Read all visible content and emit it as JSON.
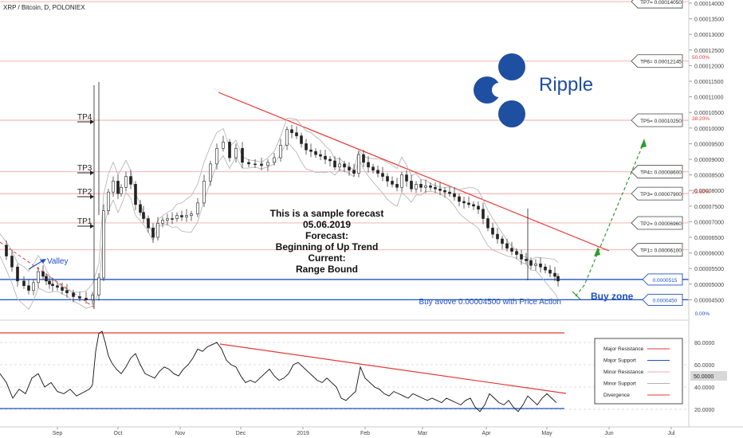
{
  "header": {
    "symbol_title": "XRP / Bitcoin, D, POLONIEX"
  },
  "colors": {
    "resistance": "#e53935",
    "support": "#1e4fc2",
    "minor_resistance": "#f0a8a8",
    "band": "#b0b0b0",
    "up_arrow": "#2e9b2e",
    "candle": "#222222",
    "ripple_logo": "#1f4fa0",
    "fib": "#e53935"
  },
  "logo": {
    "icon_name": "ripple-logo-icon",
    "brand_text": "Ripple"
  },
  "annotations": {
    "forecast_lines": [
      "This is a sample forecast",
      "05.06.2019",
      "Forecast:",
      "Beginning of Up Trend",
      "Current:",
      "Range Bound"
    ],
    "valley_label": "Valley",
    "buy_text": "Buy avove 0.00004500 with Price Action",
    "buy_zone_label": "Buy zone",
    "tp_left": [
      "TP4",
      "TP3",
      "TP2",
      "TP1"
    ],
    "tp_right": [
      "TP7= 0.00014050",
      "TP6= 0.00012145",
      "TP5= 0.00010250",
      "TP4= 0.00008600",
      "TP3= 0.00007900",
      "TP2= 0.00006960",
      "TP1= 0.00006100"
    ],
    "zone_labels": [
      "0.0000515",
      "0.0000450"
    ],
    "fib_labels": [
      "50.00%",
      "38.20%",
      "23.60%",
      "0.00%"
    ]
  },
  "legend": {
    "items": [
      {
        "label": "Major Resistance",
        "color": "#e53935"
      },
      {
        "label": "Major Support",
        "color": "#1e4fc2"
      },
      {
        "label": "Minor Resistance",
        "color": "#f0a8a8"
      },
      {
        "label": "Minor Support",
        "color": "#b0b0b0"
      },
      {
        "label": "Divergence",
        "color": "#e53935"
      }
    ]
  },
  "chart_data": [
    {
      "type": "line",
      "title": "XRP / Bitcoin, D, POLONIEX",
      "ylim": [
        4e-05,
        0.00014
      ],
      "y_ticks": [
        "0.00014000",
        "0.00013500",
        "0.00013000",
        "0.00012500",
        "0.00012000",
        "0.00011500",
        "0.00011000",
        "0.00010500",
        "0.00010000",
        "0.00009500",
        "0.00009000",
        "0.00008500",
        "0.00008000",
        "0.00007500",
        "0.00007000",
        "0.00006500",
        "0.00006000",
        "0.00005500",
        "0.00005000",
        "0.00004500"
      ],
      "x_ticks": [
        "Sep",
        "Oct",
        "Nov",
        "Dec",
        "2019",
        "Feb",
        "Mar",
        "Apr",
        "May",
        "Jun",
        "Jul"
      ],
      "target_levels": [
        0.0001405,
        0.00012145,
        0.0001025,
        8.6e-05,
        7.9e-05,
        6.96e-05,
        6.1e-05
      ],
      "buy_zone": [
        4.5e-05,
        5.15e-05
      ],
      "series": [
        {
          "name": "",
          "x": [
            0,
            8,
            15,
            22,
            30,
            36,
            42,
            48,
            54,
            58,
            62,
            66,
            72,
            78,
            84,
            92,
            100,
            108,
            116,
            124,
            130,
            136,
            142,
            148,
            152,
            158,
            164,
            170,
            176,
            180,
            186,
            192,
            198,
            204,
            210,
            216,
            222,
            228,
            234,
            240,
            248,
            256,
            264,
            272,
            280,
            288,
            296,
            304,
            312,
            320,
            328,
            336,
            344,
            352,
            360,
            366,
            372,
            378,
            384,
            390,
            396,
            402,
            408,
            414,
            420,
            426,
            432,
            438,
            444,
            450,
            456,
            462,
            468,
            474,
            480,
            486,
            492,
            498,
            504,
            510,
            516,
            522,
            528,
            534,
            540,
            546,
            552,
            558,
            564,
            570,
            576,
            582,
            588,
            594,
            600,
            606,
            612,
            618,
            624,
            630,
            636,
            642,
            648,
            654,
            660,
            666,
            672,
            678,
            684,
            690,
            696,
            700
          ],
          "y": [
            6.25e-05,
            5.9e-05,
            5.55e-05,
            5.1e-05,
            4.95e-05,
            4.8e-05,
            5.05e-05,
            5.4e-05,
            5.25e-05,
            5.1e-05,
            5e-05,
            4.95e-05,
            4.9e-05,
            4.8e-05,
            4.72e-05,
            4.6e-05,
            4.55e-05,
            4.5e-05,
            4.65e-05,
            5.2e-05,
            7.35e-05,
            7.95e-05,
            8.3e-05,
            7.9e-05,
            8.1e-05,
            8.45e-05,
            8.2e-05,
            7.55e-05,
            7.3e-05,
            7.1e-05,
            6.8e-05,
            6.5e-05,
            6.95e-05,
            7.05e-05,
            7.1e-05,
            7.1e-05,
            7.2e-05,
            7.15e-05,
            7.2e-05,
            7.25e-05,
            7.6e-05,
            8.3e-05,
            8.85e-05,
            9.35e-05,
            9.55e-05,
            9.05e-05,
            9.35e-05,
            8.9e-05,
            8.85e-05,
            8.85e-05,
            8.8e-05,
            8.9e-05,
            9.05e-05,
            9.45e-05,
            9.95e-05,
            9.85e-05,
            9.75e-05,
            9.5e-05,
            9.3e-05,
            9.25e-05,
            9.15e-05,
            9.1e-05,
            9e-05,
            8.95e-05,
            8.75e-05,
            8.85e-05,
            8.75e-05,
            8.65e-05,
            8.55e-05,
            9.15e-05,
            8.9e-05,
            8.75e-05,
            8.65e-05,
            8.55e-05,
            8.45e-05,
            8.3e-05,
            8.2e-05,
            8.1e-05,
            8.5e-05,
            8.3e-05,
            8.05e-05,
            8.2e-05,
            8.1e-05,
            8.15e-05,
            8.1e-05,
            8.05e-05,
            8e-05,
            7.95e-05,
            7.9e-05,
            7.8e-05,
            7.65e-05,
            7.6e-05,
            7.55e-05,
            7.5e-05,
            7.4e-05,
            7.1e-05,
            6.8e-05,
            6.6e-05,
            6.45e-05,
            6.3e-05,
            6.15e-05,
            6.05e-05,
            5.95e-05,
            5.8e-05,
            5.75e-05,
            5.6e-05,
            5.65e-05,
            5.55e-05,
            5.45e-05,
            5.35e-05,
            5.25e-05,
            5.1e-05
          ]
        }
      ]
    },
    {
      "type": "line",
      "title": "",
      "ylim": [
        10,
        90
      ],
      "y_ticks": [
        "80.0000",
        "60.0000",
        "40.0000",
        "20.0000"
      ],
      "current_value_label": "50.0000",
      "series": [
        {
          "name": "",
          "x": [
            0,
            8,
            16,
            24,
            32,
            40,
            48,
            56,
            64,
            72,
            80,
            88,
            96,
            104,
            112,
            116,
            120,
            124,
            128,
            132,
            136,
            140,
            146,
            152,
            158,
            164,
            170,
            176,
            182,
            188,
            194,
            200,
            206,
            212,
            218,
            224,
            230,
            236,
            242,
            248,
            254,
            260,
            266,
            272,
            278,
            284,
            290,
            296,
            302,
            308,
            314,
            320,
            326,
            332,
            338,
            344,
            350,
            356,
            362,
            368,
            374,
            380,
            386,
            392,
            398,
            404,
            410,
            416,
            422,
            428,
            434,
            440,
            446,
            452,
            458,
            464,
            470,
            476,
            482,
            488,
            494,
            500,
            506,
            512,
            518,
            524,
            530,
            536,
            542,
            548,
            554,
            560,
            566,
            572,
            578,
            584,
            590,
            596,
            602,
            608,
            614,
            620,
            626,
            632,
            638,
            644,
            650,
            656,
            662,
            668,
            674,
            680,
            686,
            692,
            698
          ],
          "y": [
            52,
            44,
            30,
            38,
            34,
            48,
            52,
            40,
            44,
            36,
            34,
            38,
            32,
            35,
            38,
            42,
            72,
            88,
            90,
            80,
            68,
            62,
            56,
            52,
            58,
            66,
            70,
            60,
            52,
            50,
            48,
            54,
            58,
            56,
            52,
            50,
            56,
            60,
            66,
            74,
            72,
            76,
            78,
            80,
            74,
            64,
            60,
            58,
            50,
            44,
            46,
            44,
            48,
            52,
            56,
            50,
            46,
            48,
            52,
            60,
            62,
            58,
            54,
            50,
            46,
            44,
            48,
            44,
            40,
            30,
            28,
            32,
            36,
            58,
            48,
            44,
            40,
            38,
            34,
            32,
            36,
            34,
            32,
            30,
            34,
            32,
            30,
            28,
            30,
            28,
            26,
            30,
            28,
            26,
            24,
            28,
            30,
            22,
            18,
            24,
            34,
            30,
            26,
            24,
            28,
            22,
            18,
            24,
            32,
            28,
            24,
            30,
            34,
            30,
            26
          ]
        }
      ]
    }
  ]
}
